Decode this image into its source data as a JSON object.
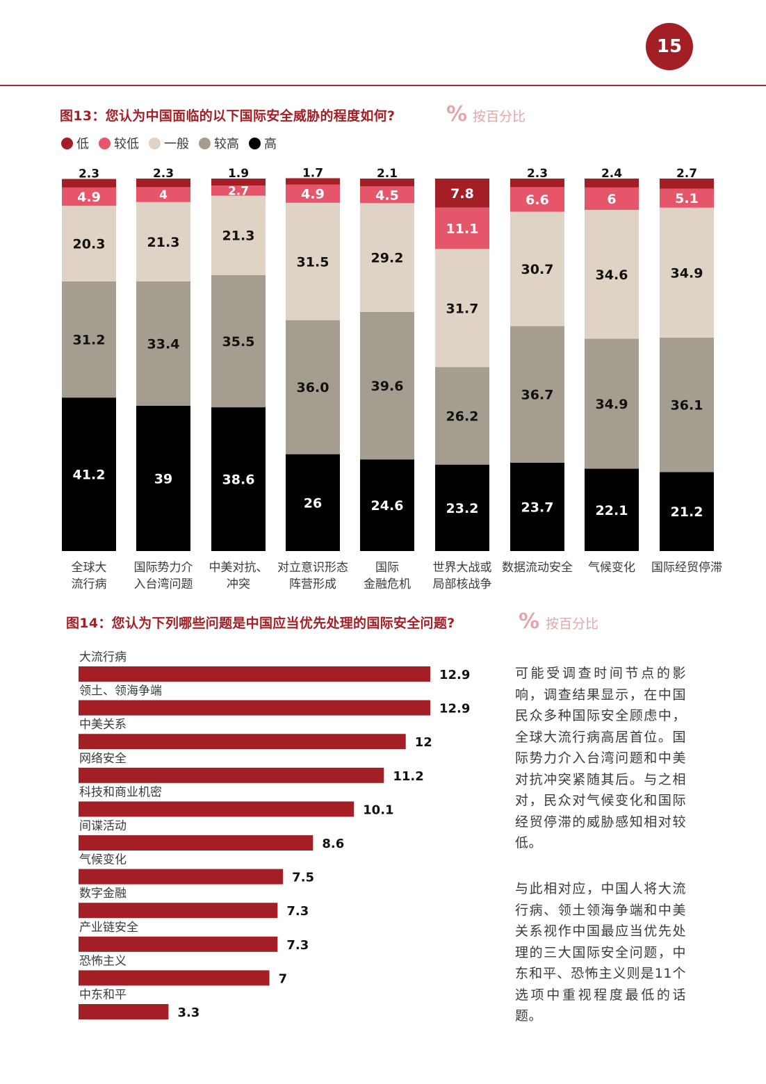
{
  "page_number": "15",
  "colors": {
    "accent": "#a31e25",
    "low": "#a31e25",
    "mid_low": "#e5566a",
    "neutral": "#ded3c4",
    "mid_high": "#a59d90",
    "high": "#000000",
    "bar": "#a31e25"
  },
  "figure13": {
    "title": "图13：您认为中国面临的以下国际安全威胁的程度如何?",
    "pct_icon": "%",
    "unit_note": "按百分比"
  },
  "figure14": {
    "title": "图14：您认为下列哪些问题是中国应当优先处理的国际安全问题?",
    "pct_icon": "%",
    "unit_note": "按百分比"
  },
  "side_text": {
    "p1": "可能受调查时间节点的影响，调查结果显示，在中国民众多种国际安全顾虑中，全球大流行病高居首位。国际势力介入台湾问题和中美对抗冲突紧随其后。与之相对，民众对气候变化和国际经贸停滞的威胁感知相对较低。",
    "p2": "与此相对应，中国人将大流行病、领土领海争端和中美关系视作中国最应当优先处理的三大国际安全问题，中东和平、恐怖主义则是11个选项中重视程度最低的话题。"
  },
  "chart_data": [
    {
      "type": "bar",
      "stacked": true,
      "categories": [
        [
          "全球大",
          "流行病"
        ],
        [
          "国际势力介",
          "入台湾问题"
        ],
        [
          "中美对抗、",
          "冲突"
        ],
        [
          "对立意识形态",
          "阵营形成"
        ],
        [
          "国际",
          "金融危机"
        ],
        [
          "世界大战或",
          "局部核战争"
        ],
        [
          "数据流动安全"
        ],
        [
          "气候变化"
        ],
        [
          "国际经贸停滞"
        ]
      ],
      "series": [
        {
          "name": "高",
          "color": "#000000",
          "label_color": "#ffffff",
          "values": [
            41.2,
            39,
            38.6,
            26,
            24.6,
            23.2,
            23.7,
            22.1,
            21.2
          ],
          "labels": [
            "41.2",
            "39",
            "38.6",
            "26",
            "24.6",
            "23.2",
            "23.7",
            "22.1",
            "21.2"
          ]
        },
        {
          "name": "较高",
          "color": "#a59d90",
          "label_color": "#111111",
          "values": [
            31.2,
            33.4,
            35.5,
            36.0,
            39.6,
            26.2,
            36.7,
            34.9,
            36.1
          ],
          "labels": [
            "31.2",
            "33.4",
            "35.5",
            "36.0",
            "39.6",
            "26.2",
            "36.7",
            "34.9",
            "36.1"
          ]
        },
        {
          "name": "一般",
          "color": "#ded3c4",
          "label_color": "#111111",
          "values": [
            20.3,
            21.3,
            21.3,
            31.5,
            29.2,
            31.7,
            30.7,
            34.6,
            34.9
          ],
          "labels": [
            "20.3",
            "21.3",
            "21.3",
            "31.5",
            "29.2",
            "31.7",
            "30.7",
            "34.6",
            "34.9"
          ]
        },
        {
          "name": "较低",
          "color": "#e5566a",
          "label_color": "#ffffff",
          "values": [
            4.9,
            4,
            2.7,
            4.9,
            4.5,
            11.1,
            6.6,
            6,
            5.1
          ],
          "labels": [
            "4.9",
            "4",
            "2.7",
            "4.9",
            "4.5",
            "11.1",
            "6.6",
            "6",
            "5.1"
          ]
        },
        {
          "name": "低",
          "color": "#a31e25",
          "label_color": "#ffffff",
          "values": [
            2.3,
            2.3,
            1.9,
            1.7,
            2.1,
            7.8,
            2.3,
            2.4,
            2.7
          ],
          "labels": [
            "2.3",
            "2.3",
            "1.9",
            "1.7",
            "2.1",
            "7.8",
            "2.3",
            "2.4",
            "2.7"
          ]
        }
      ],
      "legend": [
        "低",
        "较低",
        "一般",
        "较高",
        "高"
      ],
      "legend_position": "top-left",
      "ylim": [
        0,
        100
      ]
    },
    {
      "type": "bar",
      "orientation": "horizontal",
      "categories": [
        "大流行病",
        "领土、领海争端",
        "中美关系",
        "网络安全",
        "科技和商业机密",
        "间谍活动",
        "气候变化",
        "数字金融",
        "产业链安全",
        "恐怖主义",
        "中东和平"
      ],
      "values": [
        12.9,
        12.9,
        12,
        11.2,
        10.1,
        8.6,
        7.5,
        7.3,
        7.3,
        7,
        3.3
      ],
      "labels": [
        "12.9",
        "12.9",
        "12",
        "11.2",
        "10.1",
        "8.6",
        "7.5",
        "7.3",
        "7.3",
        "7",
        "3.3"
      ],
      "xlim": [
        0,
        12.9
      ]
    }
  ]
}
